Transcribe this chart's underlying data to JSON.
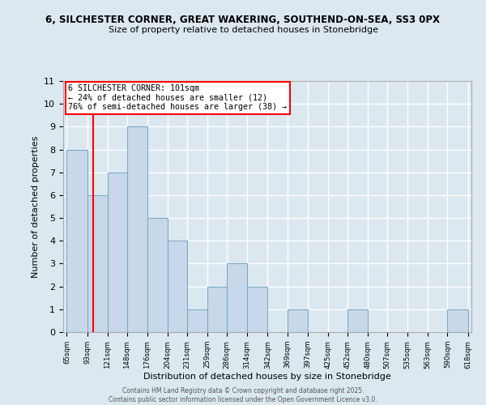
{
  "title1": "6, SILCHESTER CORNER, GREAT WAKERING, SOUTHEND-ON-SEA, SS3 0PX",
  "title2": "Size of property relative to detached houses in Stonebridge",
  "xlabel": "Distribution of detached houses by size in Stonebridge",
  "ylabel": "Number of detached properties",
  "bin_edges": [
    65,
    93,
    121,
    148,
    176,
    204,
    231,
    259,
    286,
    314,
    342,
    369,
    397,
    425,
    452,
    480,
    507,
    535,
    563,
    590,
    618
  ],
  "bar_heights": [
    8,
    6,
    7,
    9,
    5,
    4,
    1,
    2,
    3,
    2,
    0,
    1,
    0,
    0,
    1,
    0,
    0,
    0,
    0,
    1
  ],
  "bar_color": "#c8d8ea",
  "bar_edge_color": "#7aaac8",
  "red_line_x": 101,
  "annotation_text": "6 SILCHESTER CORNER: 101sqm\n← 24% of detached houses are smaller (12)\n76% of semi-detached houses are larger (38) →",
  "annotation_box_color": "white",
  "annotation_box_edge_color": "red",
  "ylim": [
    0,
    11
  ],
  "yticks": [
    0,
    1,
    2,
    3,
    4,
    5,
    6,
    7,
    8,
    9,
    10,
    11
  ],
  "background_color": "#dce8f0",
  "plot_bg_color": "#dce8f0",
  "grid_color": "white",
  "footer_line1": "Contains HM Land Registry data © Crown copyright and database right 2025.",
  "footer_line2": "Contains public sector information licensed under the Open Government Licence v3.0."
}
